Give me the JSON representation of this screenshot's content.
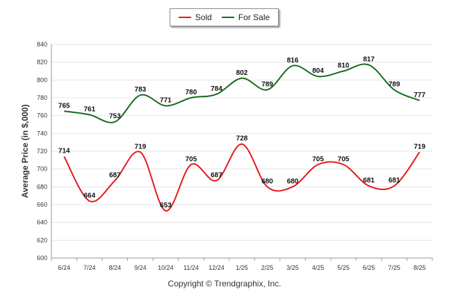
{
  "chart_data": {
    "type": "line",
    "ylabel": "Average Price (in $,000)",
    "xlabel": "",
    "ylim": [
      600,
      840
    ],
    "yticks": [
      600,
      620,
      640,
      660,
      680,
      700,
      720,
      740,
      760,
      780,
      800,
      820,
      840
    ],
    "categories": [
      "6/24",
      "7/24",
      "8/24",
      "9/24",
      "10/24",
      "11/24",
      "12/24",
      "1/25",
      "2/25",
      "3/25",
      "4/25",
      "5/25",
      "6/25",
      "7/25",
      "8/25"
    ],
    "series": [
      {
        "name": "Sold",
        "color": "#e8161b",
        "values": [
          714,
          664,
          687,
          719,
          653,
          705,
          687,
          728,
          680,
          680,
          705,
          705,
          681,
          681,
          719
        ]
      },
      {
        "name": "For Sale",
        "color": "#176b1c",
        "values": [
          765,
          761,
          753,
          783,
          771,
          780,
          784,
          802,
          789,
          816,
          804,
          810,
          817,
          789,
          777
        ]
      }
    ],
    "legend_position": "top-center",
    "grid": true
  },
  "footer": {
    "credit": "Copyright © Trendgraphix, Inc."
  }
}
